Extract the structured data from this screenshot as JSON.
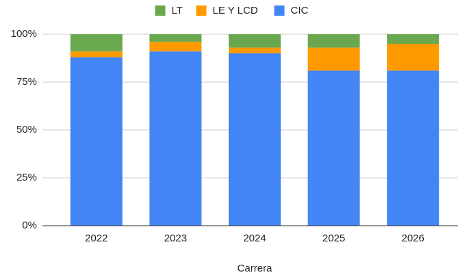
{
  "chart_data": {
    "type": "stacked_bar",
    "x_label": "Carrera",
    "categories": [
      "2022",
      "2023",
      "2024",
      "2025",
      "2026"
    ],
    "series": [
      {
        "name": "CIC",
        "color": "#4285f4",
        "values": [
          88,
          91,
          90,
          81,
          81
        ]
      },
      {
        "name": "LE Y LCD",
        "color": "#ff9900",
        "values": [
          3,
          5,
          3,
          12,
          14
        ]
      },
      {
        "name": "LT",
        "color": "#6aa84f",
        "values": [
          9,
          4,
          7,
          7,
          5
        ]
      }
    ],
    "ylim": [
      0,
      100
    ],
    "yticks": [
      {
        "value": 0,
        "label": "0%"
      },
      {
        "value": 25,
        "label": "25%"
      },
      {
        "value": 50,
        "label": "50%"
      },
      {
        "value": 75,
        "label": "75%"
      },
      {
        "value": 100,
        "label": "100%"
      }
    ],
    "grid": true,
    "legend": "top"
  }
}
